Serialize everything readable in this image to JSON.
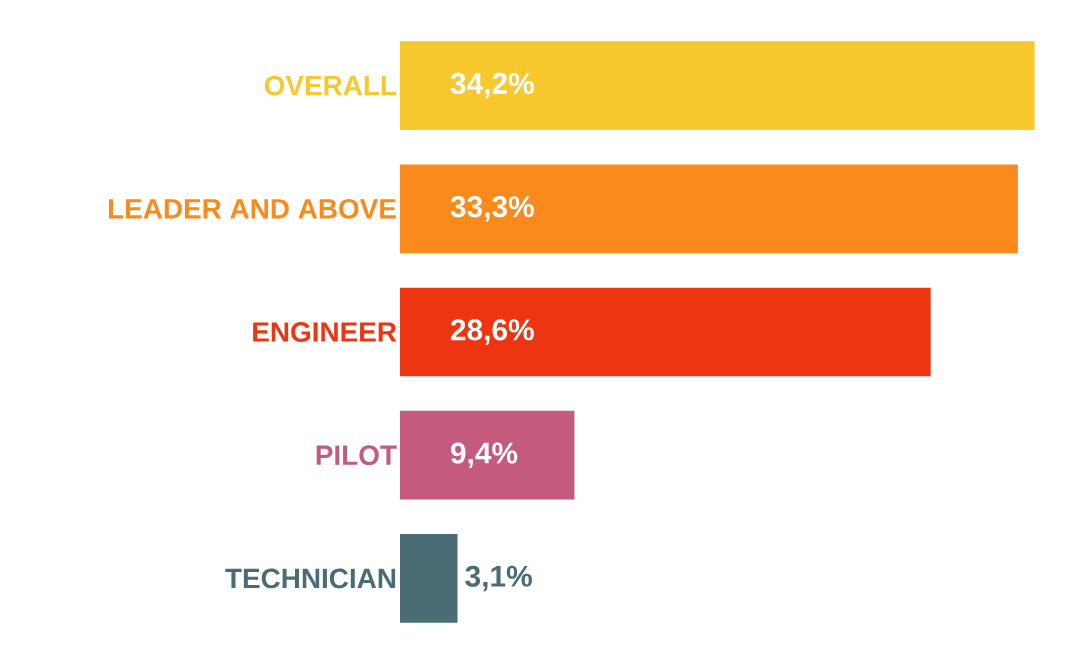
{
  "chart_data": {
    "type": "bar",
    "orientation": "horizontal",
    "categories": [
      "OVERALL",
      "LEADER AND ABOVE",
      "ENGINEER",
      "PILOT",
      "TECHNICIAN"
    ],
    "values": [
      34.2,
      33.3,
      28.6,
      9.4,
      3.1
    ],
    "colors": [
      "#f7c92e",
      "#fb8a1c",
      "#ee3512",
      "#c45b7e",
      "#4a6d75"
    ],
    "value_labels": [
      "34,2%",
      "33,3%",
      "28,6%",
      "9,4%",
      "3,1%"
    ],
    "data_labels": false
  }
}
